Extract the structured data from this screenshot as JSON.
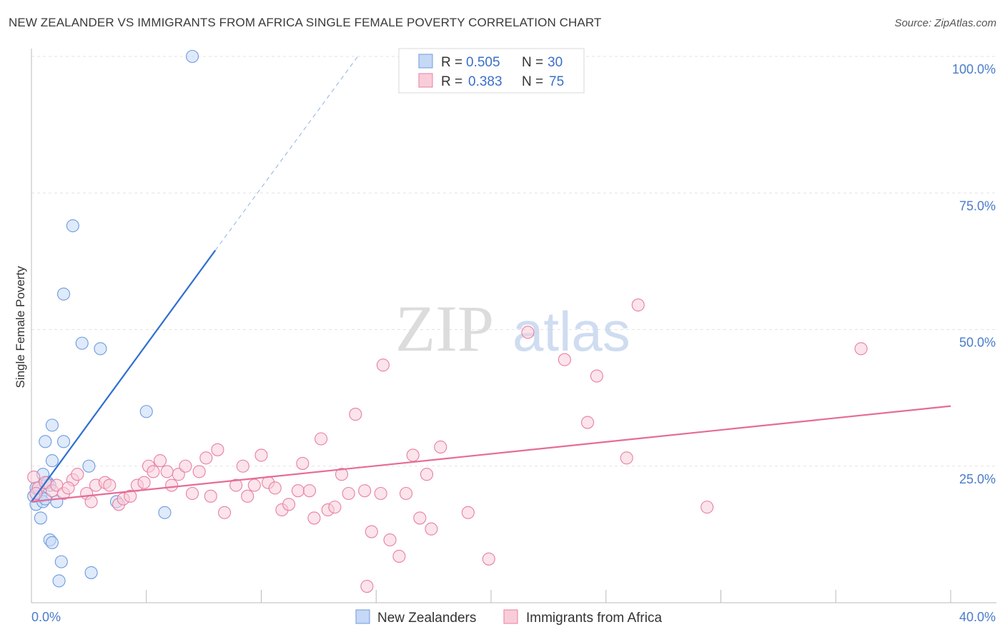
{
  "chart_data": {
    "type": "scatter",
    "title": "NEW ZEALANDER VS IMMIGRANTS FROM AFRICA SINGLE FEMALE POVERTY CORRELATION CHART",
    "source": "Source: ZipAtlas.com",
    "xlabel": "",
    "ylabel": "Single Female Poverty",
    "xlim": [
      0,
      40
    ],
    "ylim": [
      0,
      100
    ],
    "x_tick_labels": [
      {
        "value": 0,
        "label": "0.0%"
      },
      {
        "value": 40,
        "label": "40.0%"
      }
    ],
    "y_tick_labels": [
      {
        "value": 25,
        "label": "25.0%"
      },
      {
        "value": 50,
        "label": "50.0%"
      },
      {
        "value": 75,
        "label": "75.0%"
      },
      {
        "value": 100,
        "label": "100.0%"
      }
    ],
    "watermark": {
      "part1": "ZIP",
      "part2": "atlas"
    },
    "legend": {
      "r_label": "R =",
      "n_label": "N =",
      "entries": [
        {
          "r": "0.505",
          "n": "30"
        },
        {
          "r": "0.383",
          "n": "75"
        }
      ]
    },
    "series": [
      {
        "name": "New Zealanders",
        "color": "#6d9be0",
        "fill": "#c5d8f5",
        "trend": {
          "x0": 0,
          "y0": 18.5,
          "x1": 8,
          "y1": 64.5,
          "dash_to_x": 14.2,
          "dash_to_y": 100
        },
        "points": [
          [
            7.0,
            100
          ],
          [
            1.8,
            69
          ],
          [
            1.4,
            56.5
          ],
          [
            2.2,
            47.5
          ],
          [
            3.0,
            46.5
          ],
          [
            5.0,
            35
          ],
          [
            0.9,
            32.5
          ],
          [
            0.6,
            29.5
          ],
          [
            1.4,
            29.5
          ],
          [
            0.9,
            26
          ],
          [
            2.5,
            25
          ],
          [
            0.5,
            23.5
          ],
          [
            0.7,
            22
          ],
          [
            0.3,
            21
          ],
          [
            0.8,
            21.5
          ],
          [
            0.4,
            19.5
          ],
          [
            0.2,
            18
          ],
          [
            1.1,
            18.5
          ],
          [
            0.5,
            18.5
          ],
          [
            3.7,
            18.5
          ],
          [
            5.8,
            16.5
          ],
          [
            0.4,
            15.5
          ],
          [
            0.8,
            11.5
          ],
          [
            0.9,
            11
          ],
          [
            1.3,
            7.5
          ],
          [
            2.6,
            5.5
          ],
          [
            1.2,
            4
          ],
          [
            0.1,
            19.5
          ],
          [
            0.2,
            21
          ],
          [
            0.6,
            19
          ]
        ]
      },
      {
        "name": "Immigrants from Africa",
        "color": "#e87fa2",
        "fill": "#f8cdd9",
        "trend": {
          "x0": 0,
          "y0": 18.5,
          "x1": 40,
          "y1": 36
        },
        "points": [
          [
            0.1,
            23
          ],
          [
            0.3,
            21
          ],
          [
            0.6,
            22
          ],
          [
            0.9,
            20.5
          ],
          [
            1.1,
            21.5
          ],
          [
            1.4,
            20
          ],
          [
            1.8,
            22.5
          ],
          [
            2.0,
            23.5
          ],
          [
            2.4,
            20
          ],
          [
            2.6,
            18.5
          ],
          [
            2.8,
            21.5
          ],
          [
            3.2,
            22
          ],
          [
            3.4,
            21.5
          ],
          [
            3.8,
            18
          ],
          [
            4.0,
            19
          ],
          [
            4.3,
            19.5
          ],
          [
            4.6,
            21.5
          ],
          [
            4.9,
            22
          ],
          [
            5.1,
            25
          ],
          [
            5.3,
            24
          ],
          [
            5.6,
            26
          ],
          [
            5.9,
            24
          ],
          [
            6.1,
            21.5
          ],
          [
            6.4,
            23.5
          ],
          [
            6.7,
            25
          ],
          [
            7.0,
            20
          ],
          [
            7.3,
            24
          ],
          [
            7.6,
            26.5
          ],
          [
            7.8,
            19.5
          ],
          [
            8.1,
            28
          ],
          [
            8.4,
            16.5
          ],
          [
            8.9,
            21.5
          ],
          [
            9.2,
            25
          ],
          [
            9.4,
            19.5
          ],
          [
            9.7,
            21.5
          ],
          [
            10.0,
            27
          ],
          [
            10.3,
            22
          ],
          [
            10.6,
            21
          ],
          [
            10.9,
            17
          ],
          [
            11.2,
            18
          ],
          [
            11.6,
            20.5
          ],
          [
            11.8,
            25.5
          ],
          [
            12.1,
            20.5
          ],
          [
            12.3,
            15.5
          ],
          [
            12.6,
            30
          ],
          [
            12.9,
            17
          ],
          [
            13.2,
            17.5
          ],
          [
            13.5,
            23.5
          ],
          [
            13.8,
            20
          ],
          [
            14.1,
            34.5
          ],
          [
            14.5,
            20.5
          ],
          [
            14.8,
            13
          ],
          [
            15.2,
            20
          ],
          [
            15.3,
            43.5
          ],
          [
            15.6,
            11.5
          ],
          [
            16.0,
            8.5
          ],
          [
            16.3,
            20
          ],
          [
            16.6,
            27
          ],
          [
            16.9,
            15.5
          ],
          [
            17.2,
            23.5
          ],
          [
            17.4,
            13.5
          ],
          [
            17.8,
            28.5
          ],
          [
            19.0,
            16.5
          ],
          [
            19.9,
            8
          ],
          [
            21.6,
            49.5
          ],
          [
            23.2,
            44.5
          ],
          [
            24.2,
            33
          ],
          [
            24.6,
            41.5
          ],
          [
            25.9,
            26.5
          ],
          [
            26.4,
            54.5
          ],
          [
            29.4,
            17.5
          ],
          [
            36.1,
            46.5
          ],
          [
            14.6,
            3
          ],
          [
            0.2,
            20
          ],
          [
            1.6,
            21
          ]
        ]
      }
    ]
  }
}
